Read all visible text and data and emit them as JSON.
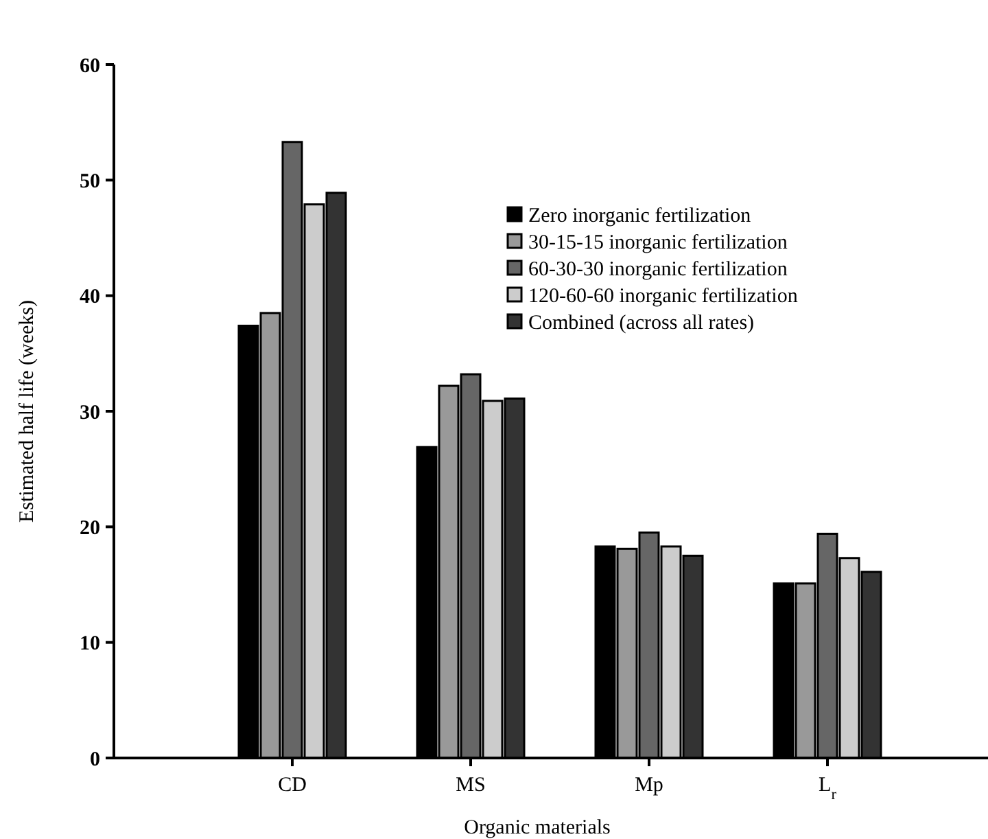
{
  "chart_data": {
    "type": "bar",
    "xlabel": "Organic materials",
    "ylabel": "Estimated half life (weeks)",
    "categories": [
      "CD",
      "MS",
      "Mp",
      "L$_{r}$"
    ],
    "ylim": [
      0,
      60
    ],
    "yticks": [
      0,
      10,
      20,
      30,
      40,
      50,
      60
    ],
    "grid": false,
    "legend": "top right",
    "series": [
      {
        "name": "Zero inorganic fertilization",
        "color": "#000000",
        "values": [
          37.4,
          26.9,
          18.3,
          15.1
        ]
      },
      {
        "name": "30-15-15 inorganic fertilization",
        "color": "#999999",
        "values": [
          38.5,
          32.2,
          18.1,
          15.1
        ]
      },
      {
        "name": "60-30-30 inorganic fertilization",
        "color": "#666666",
        "values": [
          53.3,
          33.2,
          19.5,
          19.4
        ]
      },
      {
        "name": "120-60-60 inorganic fertilization",
        "color": "#cccccc",
        "values": [
          47.9,
          30.9,
          18.3,
          17.3
        ]
      },
      {
        "name": "Combined (across all rates)",
        "color": "#333333",
        "values": [
          48.9,
          31.1,
          17.5,
          16.1
        ]
      }
    ]
  }
}
